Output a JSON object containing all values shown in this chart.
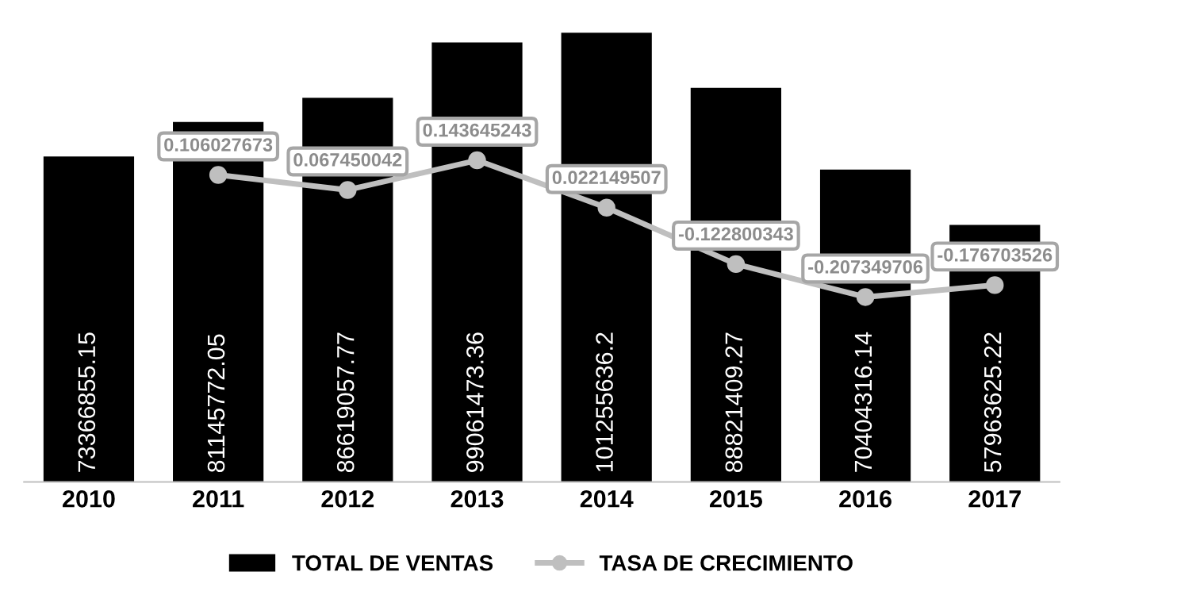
{
  "chart_data": {
    "type": "bar",
    "categories": [
      "2010",
      "2011",
      "2012",
      "2013",
      "2014",
      "2015",
      "2016",
      "2017"
    ],
    "tick_labels": "x",
    "data_labels": true,
    "legend": "bottom",
    "grid": false,
    "series": [
      {
        "name": "TOTAL DE VENTAS",
        "type": "bar",
        "color": "#000000",
        "values": [
          73366855.15,
          81145772.05,
          86619057.77,
          99061473.36,
          101255636.2,
          88821409.27,
          70404316.14,
          57963625.22
        ]
      },
      {
        "name": "TASA DE CRECIMIENTO",
        "type": "line",
        "axis": "y2",
        "color": "#bfbfbf",
        "marker": "circle",
        "values": [
          null,
          0.106027673,
          0.067450042,
          0.143645243,
          0.022149507,
          -0.122800343,
          -0.207349706,
          -0.176703526
        ]
      }
    ]
  }
}
